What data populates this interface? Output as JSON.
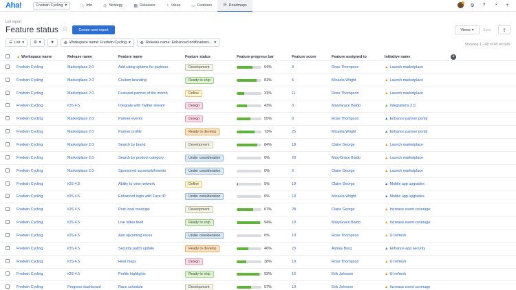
{
  "nav": {
    "logo": "Aha!",
    "workspace": "Fredwin Cycling",
    "tabs": [
      {
        "label": "Info",
        "icon": "info-icon",
        "glyph": "ⓘ"
      },
      {
        "label": "Strategy",
        "icon": "strategy-icon",
        "glyph": "◎"
      },
      {
        "label": "Releases",
        "icon": "calendar-icon",
        "glyph": "▦"
      },
      {
        "label": "Ideas",
        "icon": "lightbulb-icon",
        "glyph": "♁"
      },
      {
        "label": "Features",
        "icon": "features-icon",
        "glyph": "▭"
      },
      {
        "label": "Roadmaps",
        "icon": "roadmap-icon",
        "glyph": "☰"
      }
    ],
    "active_tab": "Roadmaps"
  },
  "header": {
    "breadcrumb": "List report",
    "title": "Feature status",
    "create_label": "Create new report",
    "views_label": "Views",
    "save_label": "Save"
  },
  "filters": {
    "list_label": "List",
    "workspace_filter": "Workspace name: Fredwin Cycling",
    "release_filter": "Release name: Enhanced notifications...",
    "showing": "Showing 1 - 48 of 48 records"
  },
  "columns": [
    "Workspace name",
    "Release name",
    "Feature name",
    "Feature status",
    "Feature progress bar",
    "Feature score",
    "Feature assigned to",
    "Initiative name"
  ],
  "statuses": {
    "Development": {
      "bg": "#f4f4ec",
      "border": "#c9c9a8",
      "color": "#4a4a3a"
    },
    "Ready to ship": {
      "bg": "#e3f3d9",
      "border": "#9fcf84",
      "color": "#2f5a1d"
    },
    "Define": {
      "bg": "#fbf3d2",
      "border": "#e2c977",
      "color": "#5a4a12"
    },
    "Design": {
      "bg": "#f6dfe8",
      "border": "#d99ab2",
      "color": "#6a2540"
    },
    "Ready to develop": {
      "bg": "#fde4c6",
      "border": "#eda85b",
      "color": "#6a3a0c"
    },
    "Under consideration": {
      "bg": "#dde9f2",
      "border": "#9cb9d1",
      "color": "#243a4f"
    }
  },
  "rows": [
    {
      "ws": "Fredwin Cycling",
      "rel": "Marketplace 2.0",
      "feat": "Add rating options for partners",
      "status": "Development",
      "progress": 64,
      "pct": "64%",
      "score": "0",
      "assigned": "Rose Thompson",
      "init": "Launch marketplace",
      "init_icon": "▲",
      "init_color": "#e2912a"
    },
    {
      "ws": "Fredwin Cycling",
      "rel": "Marketplace 2.0",
      "feat": "Custom branding",
      "status": "Ready to ship",
      "progress": 81,
      "pct": "81%",
      "score": "5",
      "assigned": "Micaela Wright",
      "init": "Launch marketplace",
      "init_icon": "▲",
      "init_color": "#e2912a"
    },
    {
      "ws": "Fredwin Cycling",
      "rel": "Marketplace 2.0",
      "feat": "Featured partner of the month",
      "status": "Define",
      "progress": 31,
      "pct": "31%",
      "score": "11",
      "assigned": "Rose Thompson",
      "init": "Launch marketplace",
      "init_icon": "▲",
      "init_color": "#e2912a"
    },
    {
      "ws": "Fredwin Cycling",
      "rel": "iOS 4.5",
      "feat": "Integrate with Twitter stream",
      "status": "Design",
      "progress": 43,
      "pct": "43%",
      "score": "3",
      "assigned": "MaryGrace Baldo",
      "init": "Integrations 2.0",
      "init_icon": "▲",
      "init_color": "#5fb23a"
    },
    {
      "ws": "Fredwin Cycling",
      "rel": "Marketplace 2.0",
      "feat": "Partner events",
      "status": "Design",
      "progress": 55,
      "pct": "55%",
      "score": "0",
      "assigned": "Rose Thompson",
      "init": "Enhance partner portal",
      "init_icon": "▲",
      "init_color": "#4a6fa5"
    },
    {
      "ws": "Fredwin Cycling",
      "rel": "Marketplace 2.0",
      "feat": "Partner profile",
      "status": "Ready to develop",
      "progress": 73,
      "pct": "73%",
      "score": "25",
      "assigned": "Micaela Wright",
      "init": "Enhance partner portal",
      "init_icon": "▲",
      "init_color": "#4a6fa5"
    },
    {
      "ws": "Fredwin Cycling",
      "rel": "Marketplace 2.0",
      "feat": "Search by brand",
      "status": "Development",
      "progress": 84,
      "pct": "84%",
      "score": "18",
      "assigned": "Claire George",
      "init": "Launch marketplace",
      "init_icon": "▲",
      "init_color": "#e2912a"
    },
    {
      "ws": "Fredwin Cycling",
      "rel": "Marketplace 2.0",
      "feat": "Search by product category",
      "status": "Under consideration",
      "progress": 0,
      "pct": "0%",
      "score": "20",
      "assigned": "MaryGrace Baldo",
      "init": "Launch marketplace",
      "init_icon": "▲",
      "init_color": "#e2912a"
    },
    {
      "ws": "Fredwin Cycling",
      "rel": "Marketplace 2.0",
      "feat": "Sponsored accomplishments",
      "status": "Under consideration",
      "progress": 0,
      "pct": "0%",
      "score": "6",
      "assigned": "Claire George",
      "init": "Launch marketplace",
      "init_icon": "▲",
      "init_color": "#e2912a"
    },
    {
      "ws": "Fredwin Cycling",
      "rel": "iOS 4.5",
      "feat": "Ability to view network",
      "status": "Define",
      "progress": 5,
      "pct": "5%",
      "score": "10",
      "assigned": "Claire George",
      "init": "Mobile app upgrades",
      "init_icon": "▲",
      "init_color": "#4a6fa5"
    },
    {
      "ws": "Fredwin Cycling",
      "rel": "iOS 4.5",
      "feat": "Enhanced login with Face ID",
      "status": "Under consideration",
      "progress": 0,
      "pct": "0%",
      "score": "10",
      "assigned": "Micaela Wright",
      "init": "Mobile app upgrades",
      "init_icon": "▲",
      "init_color": "#4a6fa5"
    },
    {
      "ws": "Fredwin Cycling",
      "rel": "iOS 4.5",
      "feat": "Post local meetups",
      "status": "Development",
      "progress": 67,
      "pct": "67%",
      "score": "28",
      "assigned": "Claire George",
      "init": "Increase event coverage",
      "init_icon": "▲",
      "init_color": "#e2912a"
    },
    {
      "ws": "Fredwin Cycling",
      "rel": "iOS 4.5",
      "feat": "Live video feed",
      "status": "Ready to ship",
      "progress": 94,
      "pct": "94%",
      "score": "10",
      "assigned": "MaryGrace Baldo",
      "init": "Increase event coverage",
      "init_icon": "▲",
      "init_color": "#e2912a"
    },
    {
      "ws": "Fredwin Cycling",
      "rel": "iOS 4.5",
      "feat": "Add upcoming races",
      "status": "Under consideration",
      "progress": 0,
      "pct": "0%",
      "score": "10",
      "assigned": "Rose Thompson",
      "init": "UI refresh",
      "init_icon": "▲",
      "init_color": "#e2912a"
    },
    {
      "ws": "Fredwin Cycling",
      "rel": "iOS 4.5",
      "feat": "Security patch update",
      "status": "Ready to develop",
      "progress": 46,
      "pct": "46%",
      "score": "23",
      "assigned": "Ashley Borg",
      "init": "Enhance app security",
      "init_icon": "▲",
      "init_color": "#4a6fa5"
    },
    {
      "ws": "Fredwin Cycling",
      "rel": "iOS 4.5",
      "feat": "Heat maps",
      "status": "Design",
      "progress": 38,
      "pct": "38%",
      "score": "19",
      "assigned": "Rose Thompson",
      "init": "UI refresh",
      "init_icon": "▲",
      "init_color": "#e2912a"
    },
    {
      "ws": "Fredwin Cycling",
      "rel": "iOS 4.5",
      "feat": "Profile highlights",
      "status": "Ready to ship",
      "progress": 93,
      "pct": "93%",
      "score": "16",
      "assigned": "Erik Johnson",
      "init": "UI refresh",
      "init_icon": "▲",
      "init_color": "#e2912a"
    },
    {
      "ws": "Fredwin Cycling",
      "rel": "Progress dashboard",
      "feat": "Race schedule",
      "status": "Development",
      "progress": 57,
      "pct": "57%",
      "score": "10",
      "assigned": "Erik Johnson",
      "init": "Increase event coverage",
      "init_icon": "▲",
      "init_color": "#e2912a"
    }
  ]
}
